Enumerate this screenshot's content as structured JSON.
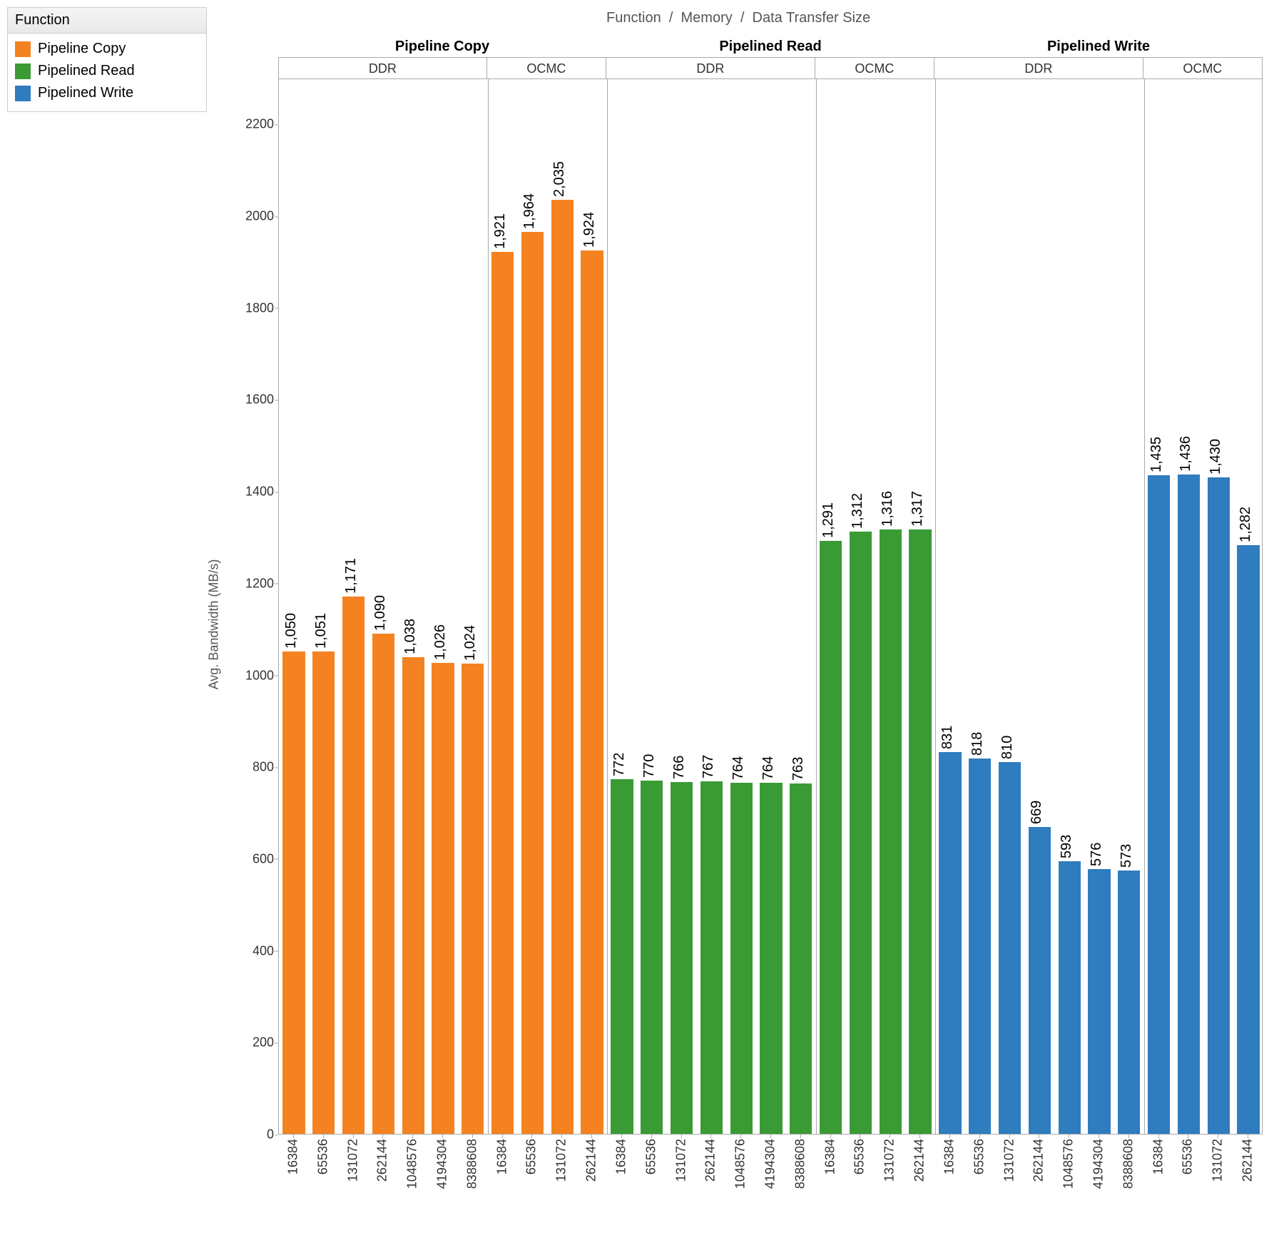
{
  "legend": {
    "title": "Function",
    "items": [
      {
        "label": "Pipeline Copy",
        "color": "#f58220"
      },
      {
        "label": "Pipelined Read",
        "color": "#3a9b35"
      },
      {
        "label": "Pipelined Write",
        "color": "#2f7cbf"
      }
    ]
  },
  "breadcrumb": [
    "Function",
    "Memory",
    "Data Transfer Size"
  ],
  "chart": {
    "type": "bar",
    "y_axis_title": "Avg. Bandwidth (MB/s)",
    "ylim": [
      0,
      2300
    ],
    "yticks": [
      0,
      200,
      400,
      600,
      800,
      1000,
      1200,
      1400,
      1600,
      1800,
      2000,
      2200
    ],
    "background_color": "#ffffff",
    "border_color": "#aaaaaa",
    "label_fontsize": 20,
    "tick_fontsize": 18,
    "bar_width_ratio": 0.75,
    "functions": [
      {
        "name": "Pipeline Copy",
        "color": "#f58220",
        "memories": [
          {
            "name": "DDR",
            "sizes": [
              "16384",
              "65536",
              "131072",
              "262144",
              "1048576",
              "4194304",
              "8388608"
            ],
            "values": [
              1050,
              1051,
              1171,
              1090,
              1038,
              1026,
              1024
            ],
            "labels": [
              "1,050",
              "1,051",
              "1,171",
              "1,090",
              "1,038",
              "1,026",
              "1,024"
            ]
          },
          {
            "name": "OCMC",
            "sizes": [
              "16384",
              "65536",
              "131072",
              "262144"
            ],
            "values": [
              1921,
              1964,
              2035,
              1924
            ],
            "labels": [
              "1,921",
              "1,964",
              "2,035",
              "1,924"
            ]
          }
        ]
      },
      {
        "name": "Pipelined Read",
        "color": "#3a9b35",
        "memories": [
          {
            "name": "DDR",
            "sizes": [
              "16384",
              "65536",
              "131072",
              "262144",
              "1048576",
              "4194304",
              "8388608"
            ],
            "values": [
              772,
              770,
              766,
              767,
              764,
              764,
              763
            ],
            "labels": [
              "772",
              "770",
              "766",
              "767",
              "764",
              "764",
              "763"
            ]
          },
          {
            "name": "OCMC",
            "sizes": [
              "16384",
              "65536",
              "131072",
              "262144"
            ],
            "values": [
              1291,
              1312,
              1316,
              1317
            ],
            "labels": [
              "1,291",
              "1,312",
              "1,316",
              "1,317"
            ]
          }
        ]
      },
      {
        "name": "Pipelined Write",
        "color": "#2f7cbf",
        "memories": [
          {
            "name": "DDR",
            "sizes": [
              "16384",
              "65536",
              "131072",
              "262144",
              "1048576",
              "4194304",
              "8388608"
            ],
            "values": [
              831,
              818,
              810,
              669,
              593,
              576,
              573
            ],
            "labels": [
              "831",
              "818",
              "810",
              "669",
              "593",
              "576",
              "573"
            ]
          },
          {
            "name": "OCMC",
            "sizes": [
              "16384",
              "65536",
              "131072",
              "262144"
            ],
            "values": [
              1435,
              1436,
              1430,
              1282
            ],
            "labels": [
              "1,435",
              "1,436",
              "1,430",
              "1,282"
            ]
          }
        ]
      }
    ]
  }
}
